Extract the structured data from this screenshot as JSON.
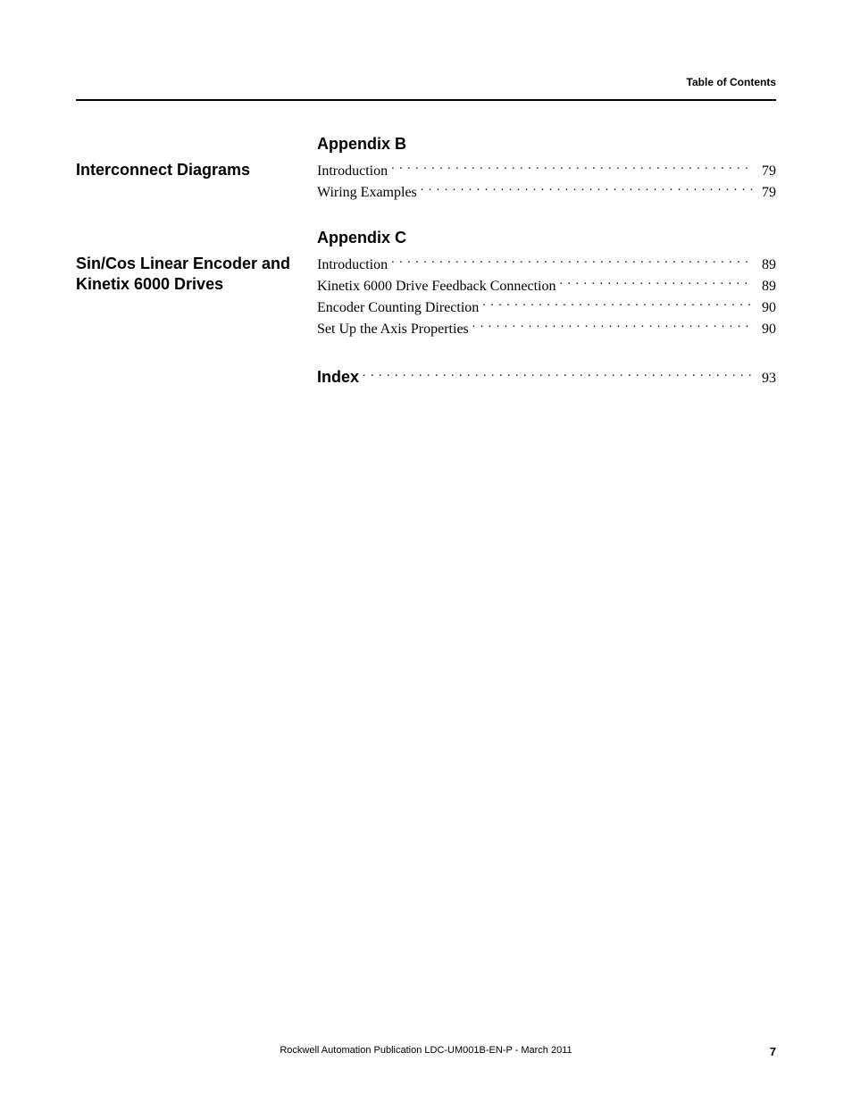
{
  "header": {
    "label": "Table of Contents"
  },
  "sections": [
    {
      "title": "Interconnect Diagrams",
      "heading": "Appendix B",
      "entries": [
        {
          "label": "Introduction",
          "page": "79"
        },
        {
          "label": "Wiring Examples",
          "page": "79"
        }
      ]
    },
    {
      "title": "Sin/Cos Linear Encoder and Kinetix 6000 Drives",
      "heading": "Appendix C",
      "entries": [
        {
          "label": "Introduction",
          "page": "89"
        },
        {
          "label": "Kinetix 6000 Drive Feedback Connection",
          "page": "89"
        },
        {
          "label": "Encoder Counting Direction",
          "page": "90"
        },
        {
          "label": "Set Up the Axis Properties",
          "page": "90"
        }
      ]
    }
  ],
  "index": {
    "label": "Index",
    "page": "93"
  },
  "footer": {
    "publication": "Rockwell Automation Publication LDC-UM001B-EN-P - March 2011",
    "pageNumber": "7"
  },
  "style": {
    "textColor": "#000000",
    "backgroundColor": "#ffffff",
    "ruleColor": "#000000",
    "headingFontFamily": "Arial, Helvetica, sans-serif",
    "bodyFontFamily": "Georgia, 'Times New Roman', serif",
    "headerFontSize": 12,
    "sectionTitleFontSize": 18,
    "appendixHeadingFontSize": 18,
    "tocFontSize": 16,
    "footerFontSize": 11,
    "pageNumberFontSize": 13
  }
}
